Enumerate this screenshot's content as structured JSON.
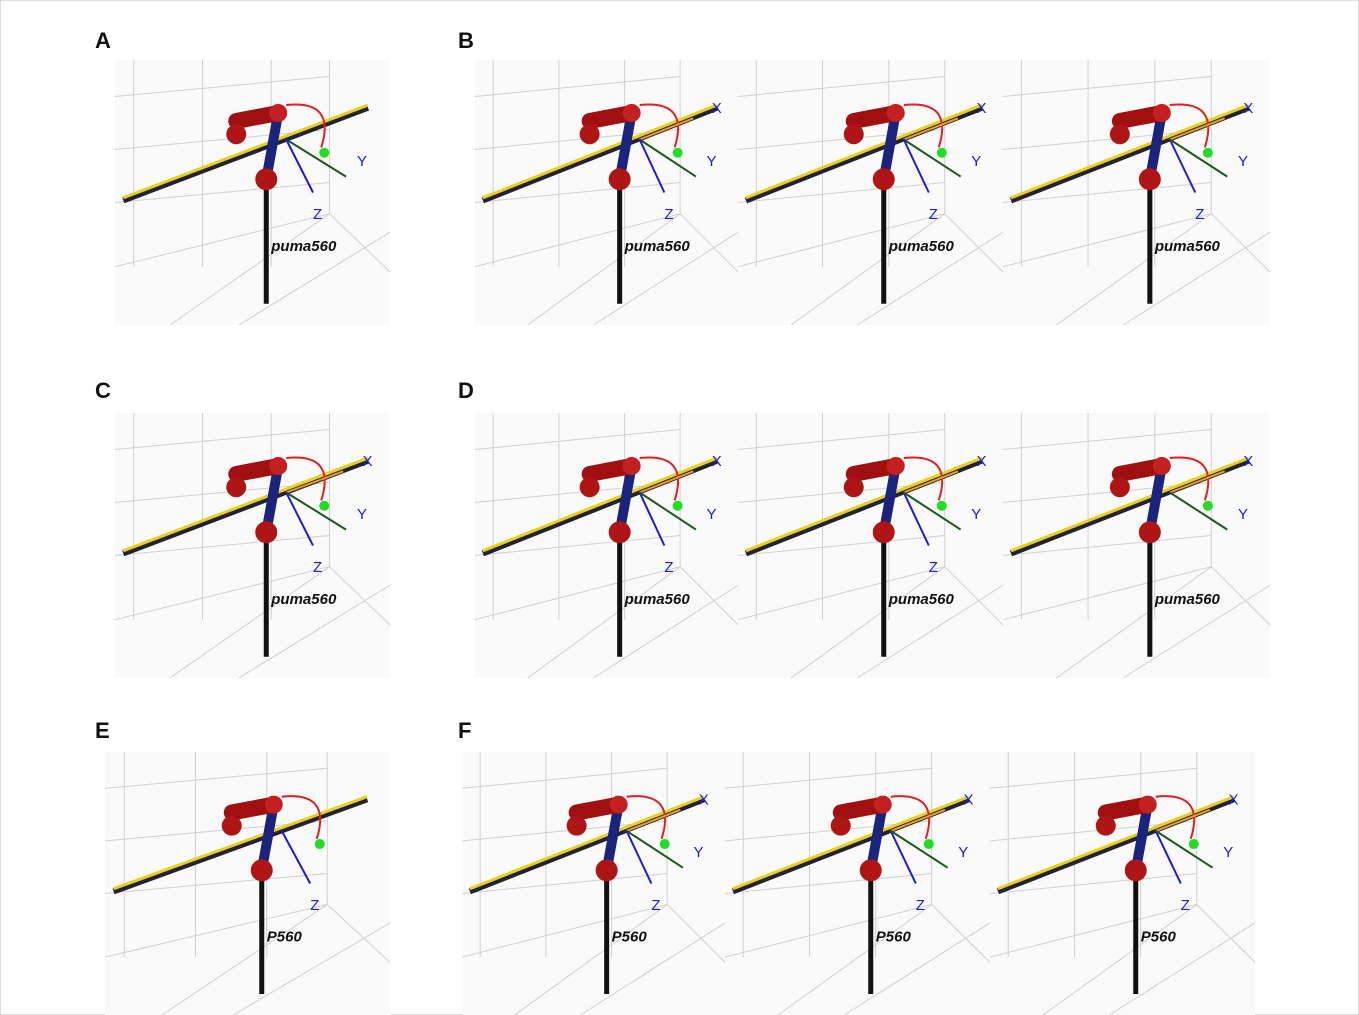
{
  "panels": [
    {
      "label": "A",
      "views": [
        {
          "robot": "puma560",
          "axes": [
            "Y",
            "Z"
          ]
        }
      ]
    },
    {
      "label": "B",
      "views": [
        {
          "robot": "puma560",
          "axes": [
            "X",
            "Y",
            "Z"
          ]
        },
        {
          "robot": "puma560",
          "axes": [
            "X",
            "Y",
            "Z"
          ]
        },
        {
          "robot": "puma560",
          "axes": [
            "X",
            "Z",
            "Y"
          ]
        }
      ]
    },
    {
      "label": "C",
      "views": [
        {
          "robot": "puma560",
          "axes": [
            "X",
            "Y",
            "Z"
          ]
        }
      ]
    },
    {
      "label": "D",
      "views": [
        {
          "robot": "puma560",
          "axes": [
            "X",
            "Z",
            "Y"
          ]
        },
        {
          "robot": "puma560",
          "axes": [
            "X",
            "Z",
            "Y"
          ]
        },
        {
          "robot": "puma560",
          "axes": [
            "X",
            "Y"
          ]
        }
      ]
    },
    {
      "label": "E",
      "views": [
        {
          "robot": "P560",
          "axes": [
            "Z"
          ]
        }
      ]
    },
    {
      "label": "F",
      "views": [
        {
          "robot": "P560",
          "axes": [
            "X",
            "Y",
            "Z"
          ]
        },
        {
          "robot": "P560",
          "axes": [
            "X",
            "Z",
            "Y"
          ]
        },
        {
          "robot": "P560",
          "axes": [
            "X",
            "Z",
            "Y"
          ]
        }
      ]
    }
  ]
}
